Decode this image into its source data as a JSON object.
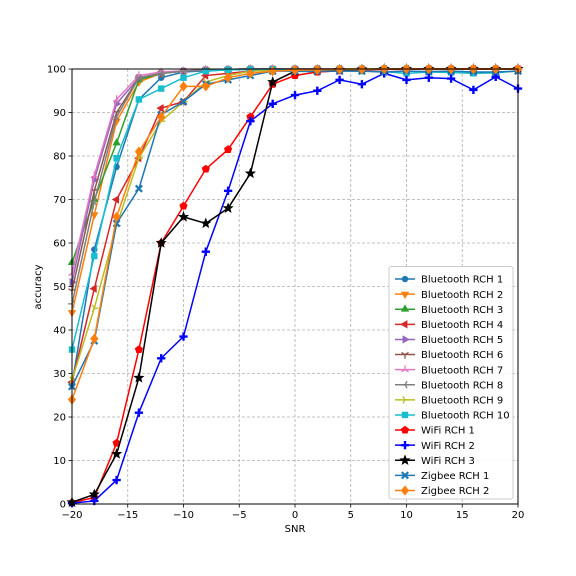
{
  "chart_data": {
    "type": "line",
    "title": "",
    "xlabel": "SNR",
    "ylabel": "accuracy",
    "xlim": [
      -20,
      20
    ],
    "ylim": [
      0,
      100
    ],
    "x_ticks": [
      -20,
      -15,
      -10,
      -5,
      0,
      5,
      10,
      15,
      20
    ],
    "y_ticks": [
      0,
      10,
      20,
      30,
      40,
      50,
      60,
      70,
      80,
      90,
      100
    ],
    "grid": true,
    "legend_position": "lower-right",
    "x": [
      -20,
      -18,
      -16,
      -14,
      -12,
      -10,
      -8,
      -6,
      -4,
      -2,
      0,
      2,
      4,
      6,
      8,
      10,
      12,
      14,
      16,
      18,
      20
    ],
    "series": [
      {
        "name": "Bluetooth RCH 1",
        "color": "#1f77b4",
        "marker": "circle",
        "values": [
          27.5,
          58.5,
          77.5,
          93.0,
          98.0,
          99.3,
          99.6,
          99.8,
          99.9,
          100,
          100,
          100,
          100,
          100,
          100,
          100,
          100,
          100,
          100,
          100,
          100
        ]
      },
      {
        "name": "Bluetooth RCH 2",
        "color": "#ff7f0e",
        "marker": "triangle-down",
        "values": [
          44.0,
          66.5,
          88.0,
          97.0,
          99.0,
          99.5,
          99.8,
          99.9,
          100,
          100,
          100,
          100,
          100,
          100,
          100,
          100,
          100,
          100,
          100,
          100,
          100
        ]
      },
      {
        "name": "Bluetooth RCH 3",
        "color": "#2ca02c",
        "marker": "triangle-up",
        "values": [
          55.5,
          70.0,
          83.0,
          97.5,
          99.0,
          99.5,
          99.8,
          99.9,
          100,
          100,
          100,
          100,
          100,
          100,
          100,
          100,
          100,
          100,
          100,
          100,
          100
        ]
      },
      {
        "name": "Bluetooth RCH 4",
        "color": "#d62728",
        "marker": "triangle-left",
        "values": [
          28.0,
          49.5,
          70.0,
          79.5,
          91.0,
          92.5,
          98.5,
          99.0,
          99.5,
          99.8,
          99.9,
          100,
          100,
          100,
          100,
          100,
          100,
          100,
          100,
          100,
          100
        ]
      },
      {
        "name": "Bluetooth RCH 5",
        "color": "#9467bd",
        "marker": "triangle-right",
        "values": [
          51.0,
          74.5,
          92.0,
          98.0,
          99.0,
          99.5,
          99.8,
          99.9,
          100,
          100,
          100,
          100,
          100,
          100,
          100,
          100,
          100,
          100,
          100,
          100,
          100
        ]
      },
      {
        "name": "Bluetooth RCH 6",
        "color": "#8c564b",
        "marker": "tri-down",
        "values": [
          49.0,
          72.0,
          90.0,
          98.0,
          99.0,
          99.5,
          99.8,
          99.9,
          100,
          100,
          100,
          100,
          100,
          100,
          100,
          100,
          100,
          100,
          100,
          100,
          100
        ]
      },
      {
        "name": "Bluetooth RCH 7",
        "color": "#e377c2",
        "marker": "tri-up",
        "values": [
          53.0,
          75.5,
          93.0,
          98.5,
          99.3,
          99.6,
          99.8,
          99.9,
          100,
          100,
          100,
          100,
          100,
          100,
          100,
          100,
          100,
          100,
          100,
          100,
          100
        ]
      },
      {
        "name": "Bluetooth RCH 8",
        "color": "#7f7f7f",
        "marker": "tri-left",
        "values": [
          46.0,
          69.5,
          89.0,
          98.0,
          99.0,
          99.5,
          99.8,
          99.9,
          100,
          100,
          100,
          100,
          100,
          100,
          100,
          100,
          100,
          100,
          100,
          100,
          100
        ]
      },
      {
        "name": "Bluetooth RCH 9",
        "color": "#bcbd22",
        "marker": "tri-right",
        "values": [
          28.5,
          45.0,
          64.0,
          79.5,
          88.0,
          92.5,
          97.0,
          98.5,
          99.5,
          99.7,
          99.8,
          99.9,
          100,
          100,
          100,
          100,
          100,
          100,
          100,
          100,
          100
        ]
      },
      {
        "name": "Bluetooth RCH 10",
        "color": "#17becf",
        "marker": "square",
        "values": [
          35.5,
          57.0,
          79.5,
          93.0,
          95.5,
          98.0,
          99.5,
          99.8,
          99.9,
          99.9,
          99.5,
          99.3,
          99.6,
          99.5,
          99.4,
          99.0,
          99.3,
          99.2,
          99.0,
          99.1,
          99.6
        ]
      },
      {
        "name": "WiFi RCH 1",
        "color": "#ff0000",
        "marker": "pentagon",
        "values": [
          0.3,
          1.5,
          14.0,
          35.5,
          60.0,
          68.5,
          77.0,
          81.5,
          89.0,
          96.5,
          98.5,
          99.3,
          99.6,
          99.8,
          99.9,
          99.9,
          100,
          100,
          100,
          100,
          100
        ]
      },
      {
        "name": "WiFi RCH 2",
        "color": "#0000ff",
        "marker": "plus",
        "values": [
          0.2,
          0.7,
          5.5,
          21.0,
          33.5,
          38.5,
          58.0,
          72.0,
          88.0,
          92.0,
          94.0,
          95.0,
          97.5,
          96.5,
          99.0,
          97.5,
          98.0,
          97.8,
          95.2,
          98.2,
          95.5
        ]
      },
      {
        "name": "WiFi RCH 3",
        "color": "#000000",
        "marker": "star",
        "values": [
          0.4,
          2.2,
          11.5,
          29.0,
          60.0,
          66.0,
          64.5,
          68.0,
          76.0,
          97.0,
          99.5,
          99.7,
          99.8,
          99.9,
          100,
          100,
          100,
          100,
          100,
          100,
          100
        ]
      },
      {
        "name": "Zigbee RCH 1",
        "color": "#1f77b4",
        "marker": "x",
        "values": [
          27.0,
          37.5,
          64.5,
          72.5,
          89.5,
          92.5,
          96.5,
          97.5,
          98.5,
          99.5,
          99.5,
          99.5,
          99.5,
          99.5,
          99.3,
          99.5,
          99.4,
          99.5,
          99.3,
          99.3,
          99.5
        ]
      },
      {
        "name": "Zigbee RCH 2",
        "color": "#ff7f0e",
        "marker": "diamond",
        "values": [
          24.0,
          38.0,
          66.0,
          81.0,
          89.0,
          96.0,
          96.0,
          98.0,
          99.0,
          99.5,
          99.7,
          99.8,
          99.9,
          99.9,
          100,
          100,
          100,
          100,
          100,
          100,
          100
        ]
      }
    ]
  }
}
